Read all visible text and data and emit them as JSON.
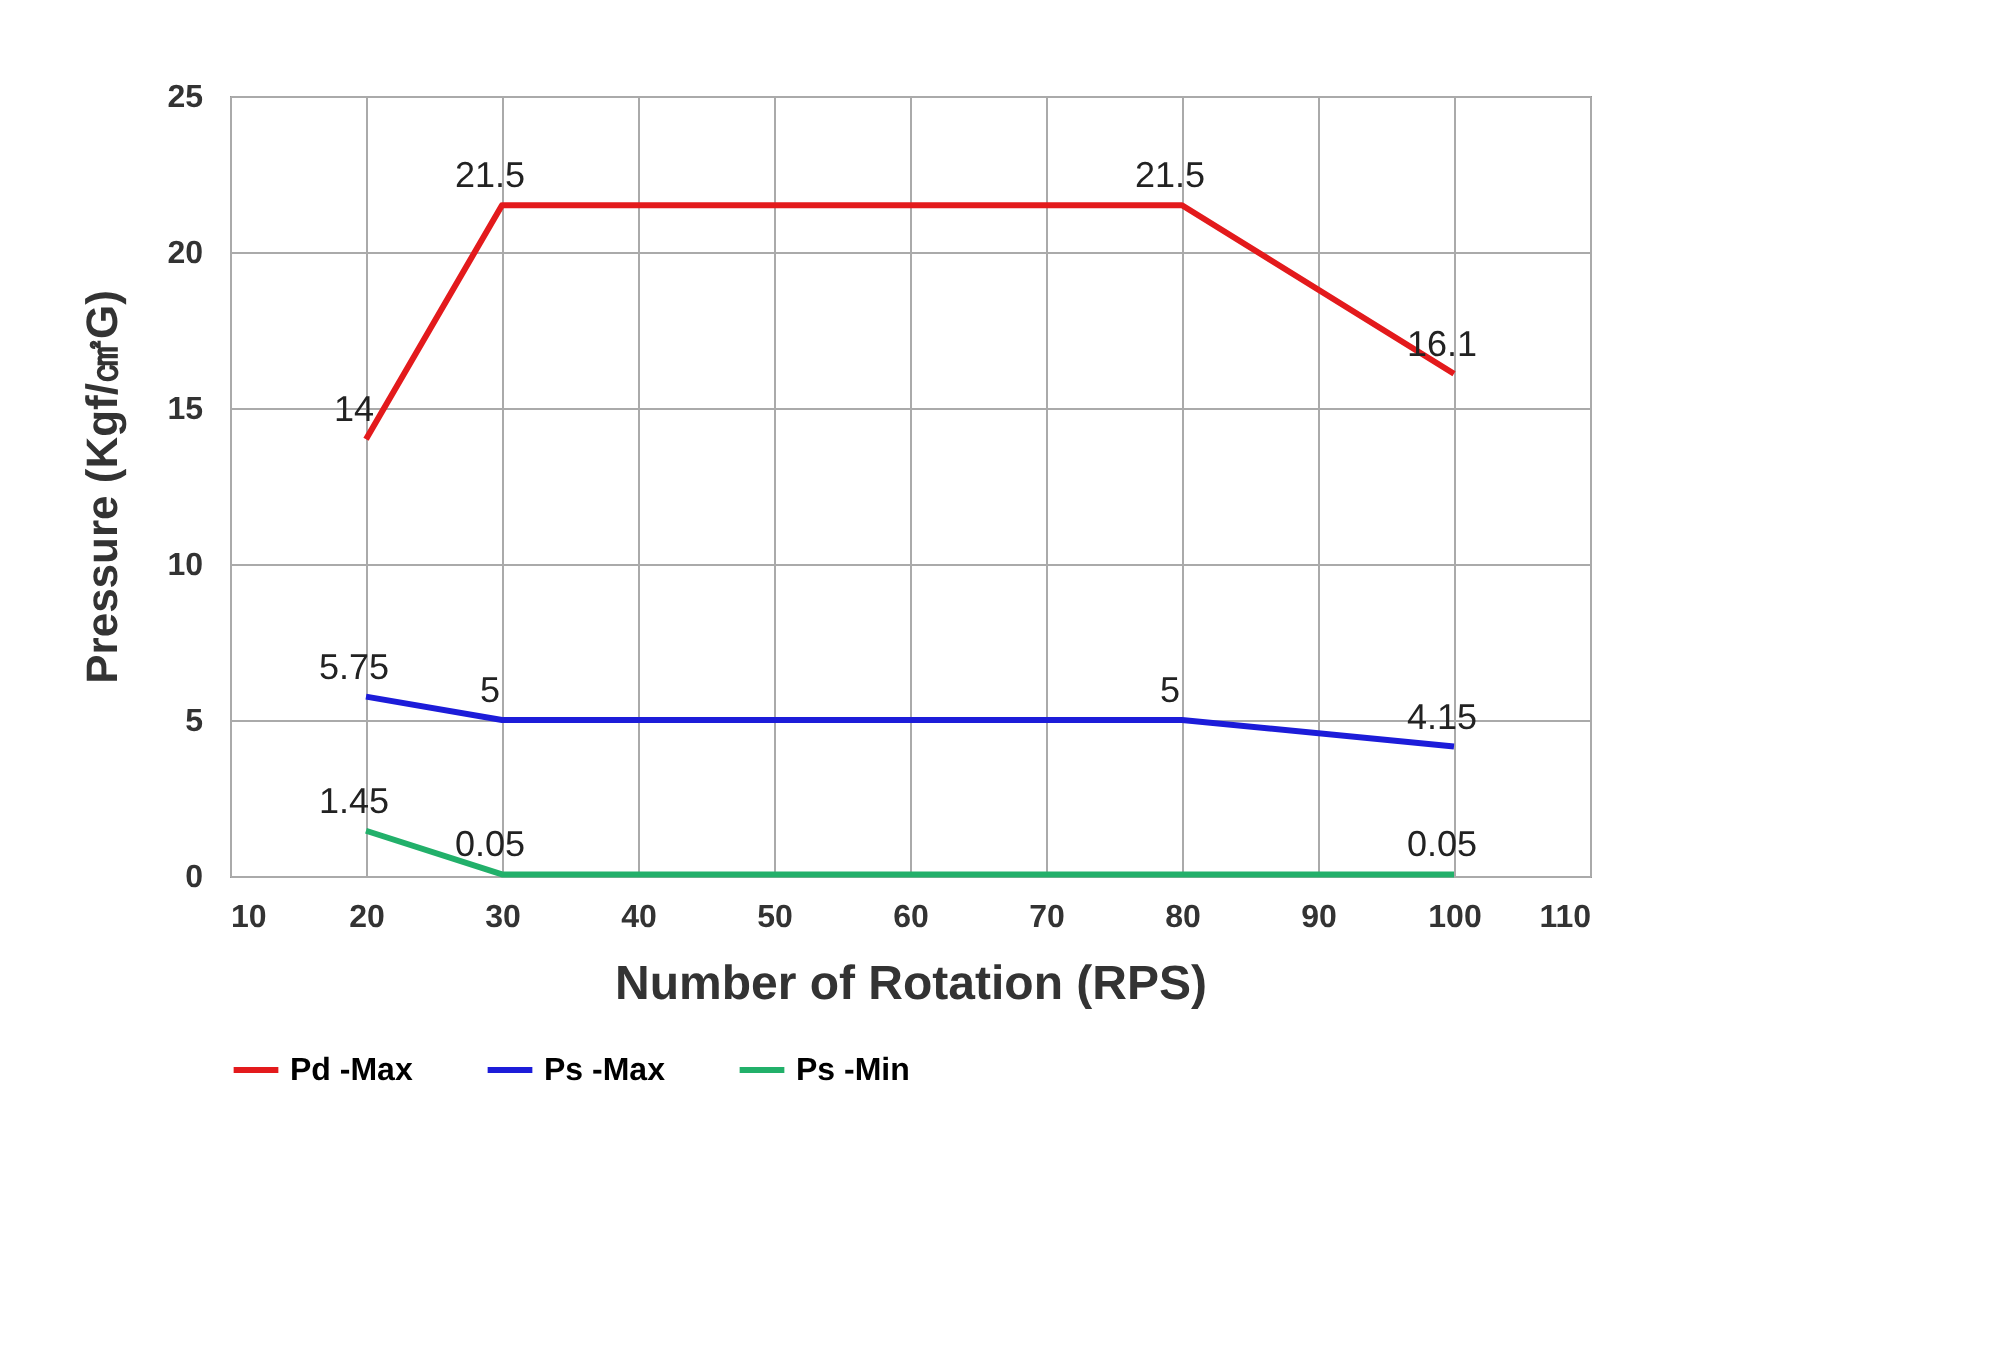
{
  "chart_data": {
    "type": "line",
    "xlabel": "Number of Rotation (RPS)",
    "ylabel": "Pressure (Kgf/㎠G)",
    "x": [
      20,
      30,
      80,
      100
    ],
    "series": [
      {
        "name": "Pd -Max",
        "color": "#e31a1c",
        "values": [
          14,
          21.5,
          21.5,
          16.1
        ],
        "value_labels": [
          "14",
          "21.5",
          "21.5",
          "16.1"
        ]
      },
      {
        "name": "Ps -Max",
        "color": "#1c1cd9",
        "values": [
          5.75,
          5,
          5,
          4.15
        ],
        "value_labels": [
          "5.75",
          "5",
          "5",
          "4.15"
        ]
      },
      {
        "name": "Ps -Min",
        "color": "#22b06a",
        "values": [
          1.45,
          0.05,
          0.05,
          0.05
        ],
        "value_labels": [
          "1.45",
          "0.05",
          null,
          "0.05"
        ]
      }
    ],
    "xlim": [
      10,
      110
    ],
    "xticks": [
      10,
      20,
      30,
      40,
      50,
      60,
      70,
      80,
      90,
      100,
      110
    ],
    "ylim": [
      0,
      25
    ],
    "yticks": [
      0,
      5,
      10,
      15,
      20,
      25
    ],
    "grid": true,
    "legend": "bottom"
  }
}
